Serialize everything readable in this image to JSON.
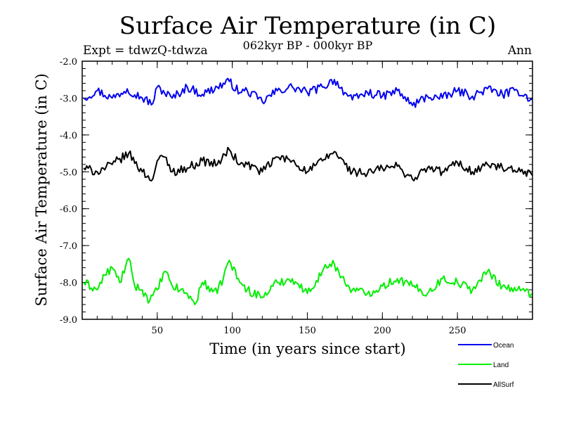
{
  "chart_data": {
    "type": "line",
    "title": "Surface Air Temperature (in C)",
    "subtitle": "062kyr BP - 000kyr BP",
    "left_label": "Expt = tdwzQ-tdwza",
    "right_label": "Ann",
    "xlabel": "Time (in years since start)",
    "ylabel": "Surface Air Temperature (in C)",
    "xlim": [
      0,
      300
    ],
    "ylim": [
      -9.0,
      -2.0
    ],
    "x_ticks": [
      50,
      100,
      150,
      200,
      250
    ],
    "y_ticks": [
      -9.0,
      -8.0,
      -7.0,
      -6.0,
      -5.0,
      -4.0,
      -3.0,
      -2.0
    ],
    "y_tick_labels": [
      "-9.0",
      "-8.0",
      "-7.0",
      "-6.0",
      "-5.0",
      "-4.0",
      "-3.0",
      "-2.0"
    ],
    "legend_position": "bottom-right, outside plot",
    "series": [
      {
        "name": "Ocean",
        "color": "#0000ee",
        "x": [
          1,
          10,
          20,
          30,
          40,
          47,
          50,
          60,
          70,
          80,
          90,
          98,
          105,
          110,
          120,
          130,
          140,
          150,
          160,
          168,
          175,
          180,
          190,
          200,
          210,
          220,
          230,
          240,
          250,
          260,
          270,
          280,
          290,
          300
        ],
        "values": [
          -3.0,
          -2.8,
          -3.0,
          -2.75,
          -3.0,
          -3.15,
          -2.7,
          -3.0,
          -2.7,
          -2.9,
          -2.7,
          -2.55,
          -2.85,
          -2.8,
          -3.1,
          -2.8,
          -2.7,
          -2.85,
          -2.7,
          -2.5,
          -2.85,
          -3.05,
          -2.85,
          -2.95,
          -2.8,
          -3.2,
          -2.95,
          -3.0,
          -2.8,
          -2.95,
          -2.75,
          -2.9,
          -2.8,
          -3.05
        ]
      },
      {
        "name": "Land",
        "color": "#00ee00",
        "x": [
          1,
          10,
          15,
          20,
          25,
          31,
          35,
          40,
          45,
          50,
          55,
          60,
          70,
          75,
          80,
          90,
          98,
          105,
          110,
          120,
          130,
          140,
          150,
          160,
          165,
          168,
          175,
          180,
          190,
          200,
          210,
          220,
          230,
          240,
          250,
          260,
          270,
          280,
          290,
          300
        ],
        "values": [
          -8.0,
          -8.2,
          -7.8,
          -7.6,
          -8.0,
          -7.35,
          -8.1,
          -8.2,
          -8.5,
          -8.2,
          -7.7,
          -8.1,
          -8.3,
          -8.6,
          -8.0,
          -8.3,
          -7.4,
          -8.0,
          -8.2,
          -8.4,
          -8.0,
          -7.9,
          -8.3,
          -7.7,
          -7.5,
          -7.5,
          -8.0,
          -8.2,
          -8.3,
          -8.1,
          -7.9,
          -8.1,
          -8.3,
          -7.9,
          -8.0,
          -8.2,
          -7.7,
          -8.1,
          -8.2,
          -8.3
        ]
      },
      {
        "name": "AllSurf",
        "color": "#000000",
        "x": [
          1,
          10,
          20,
          31,
          40,
          47,
          50,
          55,
          60,
          70,
          80,
          90,
          98,
          105,
          110,
          120,
          130,
          140,
          150,
          160,
          168,
          175,
          180,
          190,
          200,
          210,
          220,
          230,
          240,
          250,
          260,
          270,
          280,
          290,
          300
        ],
        "values": [
          -4.9,
          -5.0,
          -4.8,
          -4.5,
          -5.0,
          -5.2,
          -4.7,
          -4.6,
          -5.0,
          -4.9,
          -4.7,
          -4.8,
          -4.4,
          -4.8,
          -4.8,
          -5.0,
          -4.6,
          -4.7,
          -5.0,
          -4.7,
          -4.45,
          -4.8,
          -5.0,
          -5.05,
          -4.9,
          -4.85,
          -5.2,
          -4.9,
          -5.0,
          -4.75,
          -5.0,
          -4.8,
          -4.9,
          -5.0,
          -5.1
        ]
      }
    ]
  }
}
